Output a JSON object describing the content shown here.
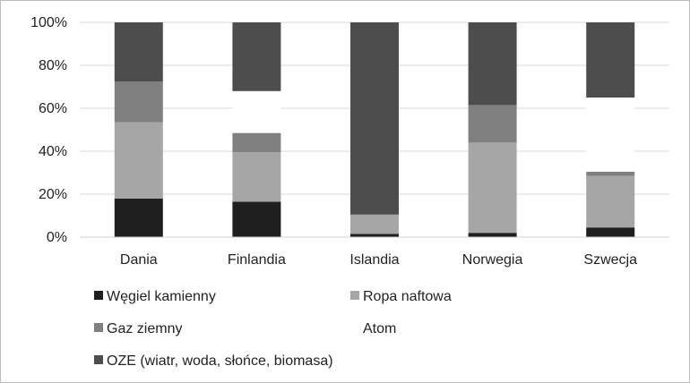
{
  "chart_data": {
    "type": "bar",
    "stacked": true,
    "percent": true,
    "categories": [
      "Dania",
      "Finlandia",
      "Islandia",
      "Norwegia",
      "Szwecja"
    ],
    "series": [
      {
        "name": "Węgiel kamienny",
        "color": "#1f1f1f",
        "values": [
          18,
          16.5,
          1.5,
          2,
          4.5
        ]
      },
      {
        "name": "Ropa naftowa",
        "color": "#a6a6a6",
        "values": [
          35.5,
          23,
          9,
          42,
          24
        ]
      },
      {
        "name": "Gaz ziemny",
        "color": "#808080",
        "values": [
          19,
          9,
          0,
          17.5,
          2
        ]
      },
      {
        "name": "Atom",
        "color": "#ffffff",
        "values": [
          0,
          19.5,
          0,
          0,
          34.5
        ]
      },
      {
        "name": "OZE (wiatr, woda, słońce, biomasa)",
        "color": "#4d4d4d",
        "values": [
          27.5,
          32,
          89.5,
          38.5,
          35
        ]
      }
    ],
    "yticks": [
      "0%",
      "20%",
      "40%",
      "60%",
      "80%",
      "100%"
    ],
    "ylim": [
      0,
      100
    ],
    "grid": true,
    "legend_position": "bottom"
  }
}
